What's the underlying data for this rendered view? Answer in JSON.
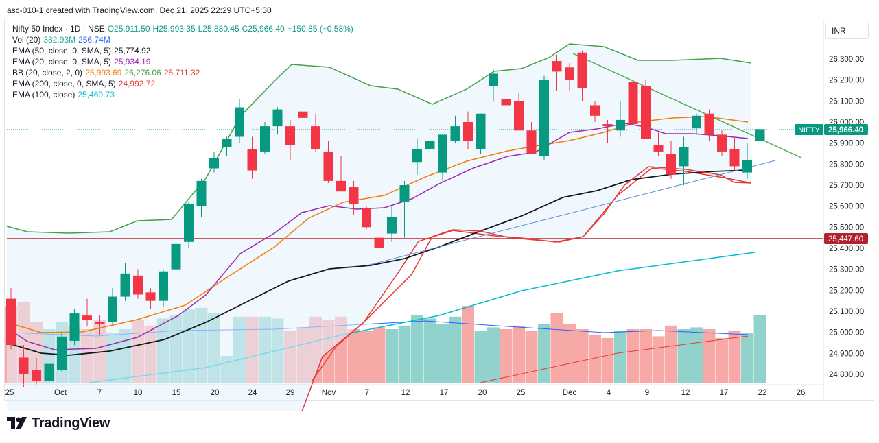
{
  "header": {
    "text": "asc-010-1 created with TradingView.com, Dec 21, 2025 22:29 UTC+5:30"
  },
  "currency": "INR",
  "brand": "TradingView",
  "legend": [
    {
      "label": "Nifty 50 Index · 1D · NSE",
      "values": [
        {
          "text": "O25,911.50",
          "color": "#089981"
        },
        {
          "text": "H25,993.35",
          "color": "#089981"
        },
        {
          "text": "L25,880.45",
          "color": "#089981"
        },
        {
          "text": "C25,966.40",
          "color": "#089981"
        },
        {
          "text": "+150.85 (+0.58%)",
          "color": "#089981"
        }
      ]
    },
    {
      "label": "Vol (20)",
      "values": [
        {
          "text": "382.93M",
          "color": "#22ab94"
        },
        {
          "text": "256.74M",
          "color": "#2962ff"
        }
      ]
    },
    {
      "label": "EMA (50, close, 0, SMA, 5)",
      "values": [
        {
          "text": "25,774.92",
          "color": "#131722"
        }
      ]
    },
    {
      "label": "EMA (20, close, 0, SMA, 5)",
      "values": [
        {
          "text": "25,934.19",
          "color": "#9c27b0"
        }
      ]
    },
    {
      "label": "BB (20, close, 2, 0)",
      "values": [
        {
          "text": "25,993.69",
          "color": "#f57c00"
        },
        {
          "text": "26,276.06",
          "color": "#43a047"
        },
        {
          "text": "25,711.32",
          "color": "#e53935"
        }
      ]
    },
    {
      "label": "EMA (200, close, 0, SMA, 5)",
      "values": [
        {
          "text": "24,992.72",
          "color": "#e53935"
        }
      ]
    },
    {
      "label": "EMA (100, close)",
      "values": [
        {
          "text": "25,469.73",
          "color": "#00bcd4"
        }
      ]
    }
  ],
  "chart_data": {
    "type": "candlestick",
    "y_ticks": [
      "26,300.00",
      "26,200.00",
      "26,100.00",
      "26,000.00",
      "25,900.00",
      "25,800.00",
      "25,700.00",
      "25,600.00",
      "25,500.00",
      "25,400.00",
      "25,300.00",
      "25,200.00",
      "25,100.00",
      "25,000.00",
      "24,900.00",
      "24,800.00"
    ],
    "x_ticks": [
      "25",
      "Oct",
      "7",
      "10",
      "15",
      "20",
      "24",
      "29",
      "Nov",
      "7",
      "12",
      "17",
      "20",
      "25",
      "Dec",
      "4",
      "9",
      "12",
      "17",
      "22",
      "26"
    ],
    "last_price_label": {
      "name": "NIFTY",
      "value": "25,966.40"
    },
    "horizontal_line_label": "25,447.60",
    "colors": {
      "up": "#089981",
      "down": "#f23645",
      "vol_up": "#92d2cc",
      "vol_down": "#f7a9a7",
      "ema50": "#131722",
      "ema20": "#9c27b0",
      "bb_basis": "#f57c00",
      "bb_upper": "#43a047",
      "bb_lower": "#e53935",
      "ema200": "#e53935",
      "ema100": "#00bcd4",
      "hline": "#b2222e",
      "trend": "#4caf50",
      "support": "#5b8fd6"
    }
  }
}
